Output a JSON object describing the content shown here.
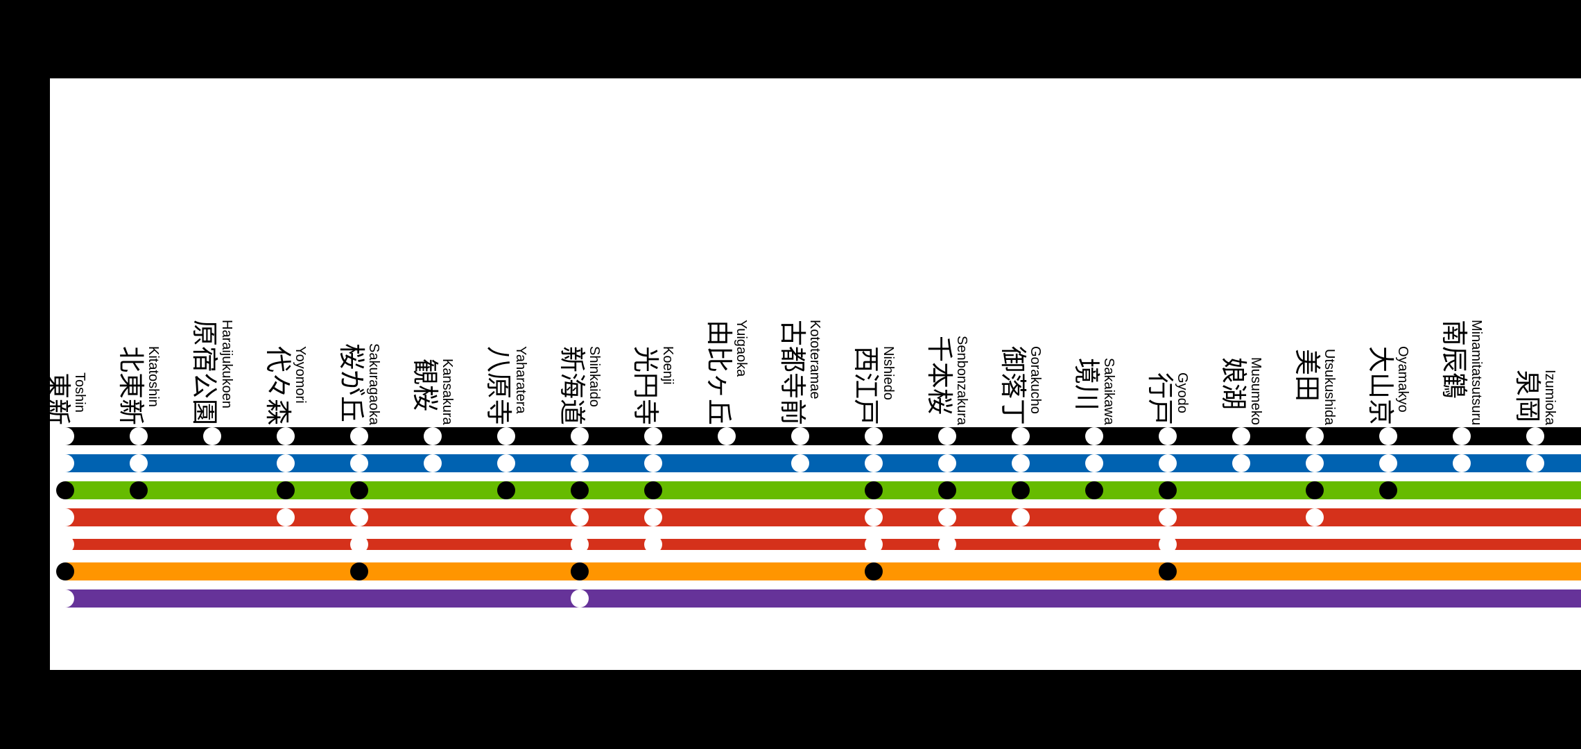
{
  "stations": [
    {
      "kanji": "東新",
      "romaji": "Toshin"
    },
    {
      "kanji": "北東新",
      "romaji": "Kitatoshin"
    },
    {
      "kanji": "原宿公園",
      "romaji": "Haraijukukoen"
    },
    {
      "kanji": "代々森",
      "romaji": "Yoyomori"
    },
    {
      "kanji": "桜が丘",
      "romaji": "Sakuragaoka"
    },
    {
      "kanji": "観桜",
      "romaji": "Kansakura"
    },
    {
      "kanji": "八原寺",
      "romaji": "Yaharatera"
    },
    {
      "kanji": "新海道",
      "romaji": "Shinkaido"
    },
    {
      "kanji": "光円寺",
      "romaji": "Koenji"
    },
    {
      "kanji": "由比ヶ丘",
      "romaji": "Yuigaoka"
    },
    {
      "kanji": "古都寺前",
      "romaji": "Kototeramae"
    },
    {
      "kanji": "西江戸",
      "romaji": "Nishiedo"
    },
    {
      "kanji": "千本桜",
      "romaji": "Senbonzakura"
    },
    {
      "kanji": "御落丁",
      "romaji": "Gorakucho"
    },
    {
      "kanji": "境川",
      "romaji": "Sakaikawa"
    },
    {
      "kanji": "行戸",
      "romaji": "Gyodo"
    },
    {
      "kanji": "娘湖",
      "romaji": "Musumeko"
    },
    {
      "kanji": "美田",
      "romaji": "Utsukushida"
    },
    {
      "kanji": "大山京",
      "romaji": "Oyamakyo"
    },
    {
      "kanji": "南辰鶴",
      "romaji": "Minamitatsutsuru"
    },
    {
      "kanji": "泉岡",
      "romaji": "Izumioka"
    }
  ],
  "lines": [
    {
      "color": "#000000",
      "dot": "white",
      "stops": [
        0,
        1,
        2,
        3,
        4,
        5,
        6,
        7,
        8,
        9,
        10,
        11,
        12,
        13,
        14,
        15,
        16,
        17,
        18,
        19,
        20
      ]
    },
    {
      "color": "#0062b1",
      "dot": "white",
      "stops": [
        0,
        1,
        3,
        4,
        5,
        6,
        7,
        8,
        10,
        11,
        12,
        13,
        14,
        15,
        16,
        17,
        18,
        19,
        20
      ]
    },
    {
      "color": "#66bb00",
      "dot": "black",
      "stops": [
        0,
        1,
        3,
        4,
        6,
        7,
        8,
        11,
        12,
        13,
        14,
        15,
        17,
        18
      ]
    },
    {
      "color": "#d5311b",
      "dot": "white",
      "stops": [
        0,
        3,
        4,
        7,
        8,
        11,
        12,
        13,
        15,
        17
      ]
    },
    {
      "color": "#d5311b",
      "dot": "white",
      "stops": [
        0,
        4,
        7,
        8,
        11,
        12,
        15
      ]
    },
    {
      "color": "#ff9500",
      "dot": "black",
      "stops": [
        0,
        4,
        7,
        11,
        15
      ]
    },
    {
      "color": "#663399",
      "dot": "white",
      "stops": [
        0,
        7
      ]
    }
  ]
}
